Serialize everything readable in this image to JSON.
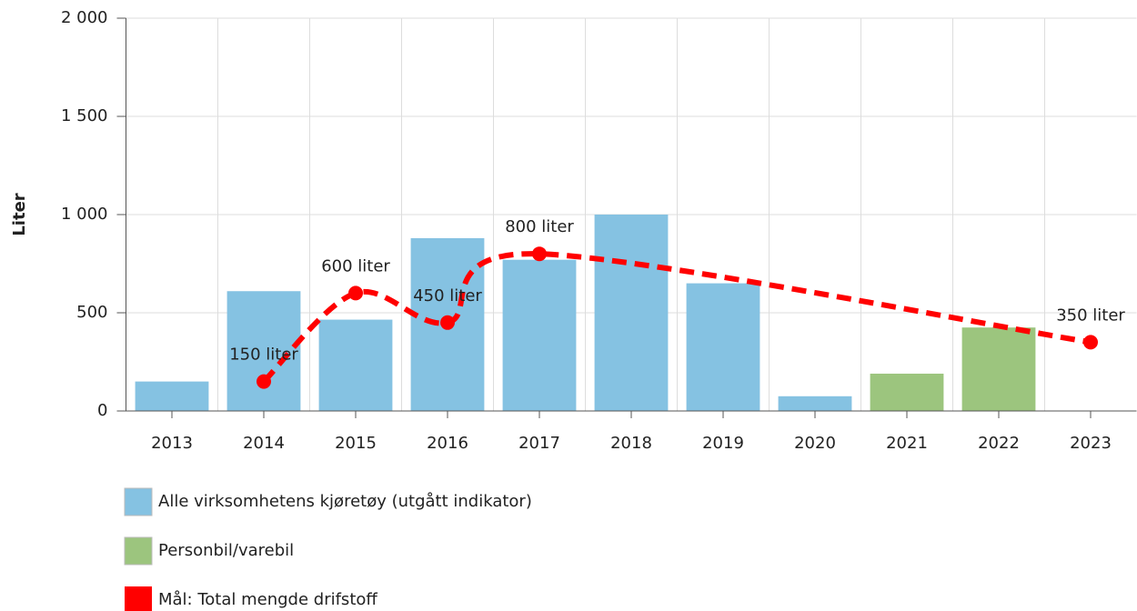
{
  "chart_data": {
    "type": "bar",
    "y_label": "Liter",
    "categories": [
      "2013",
      "2014",
      "2015",
      "2016",
      "2017",
      "2018",
      "2019",
      "2020",
      "2021",
      "2022",
      "2023"
    ],
    "series": [
      {
        "name": "Alle virksomhetens kjøretøy (utgått indikator)",
        "type": "bar",
        "color": "#85c2e2",
        "values": [
          150,
          610,
          465,
          880,
          770,
          1000,
          650,
          75,
          null,
          null,
          null
        ]
      },
      {
        "name": "Personbil/varebil",
        "type": "bar",
        "color": "#9cc57e",
        "values": [
          null,
          null,
          null,
          null,
          null,
          null,
          null,
          null,
          190,
          425,
          null
        ]
      },
      {
        "name": "Mål: Total mengde drifstoff",
        "type": "line",
        "color": "#ff0000",
        "x": [
          "2014",
          "2015",
          "2016",
          "2017",
          "2023"
        ],
        "values": [
          150,
          600,
          450,
          800,
          350
        ],
        "value_labels": [
          "150 liter",
          "600 liter",
          "450 liter",
          "800 liter",
          "350 liter"
        ]
      }
    ],
    "ylim": [
      0,
      2000
    ],
    "yticks": [
      0,
      500,
      {
        "value": 1000,
        "label": "1 000"
      },
      {
        "value": 1500,
        "label": "1 500"
      },
      {
        "value": 2000,
        "label": "2 000"
      }
    ],
    "grid": true,
    "legend": "bottom"
  }
}
